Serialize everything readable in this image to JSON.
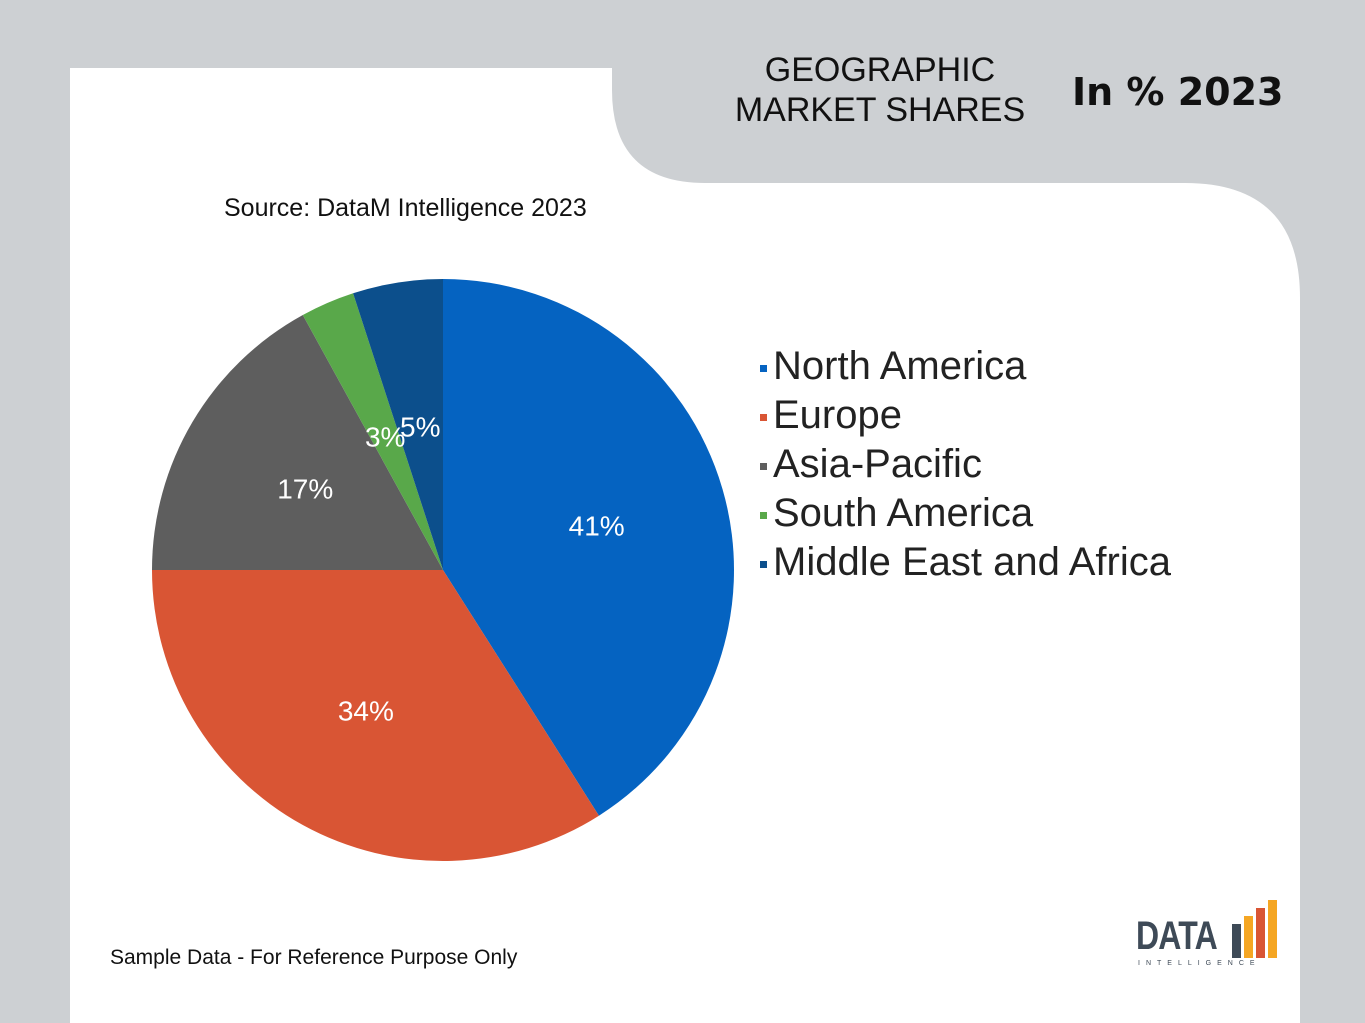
{
  "header": {
    "title": "GEOGRAPHIC MARKET SHARES",
    "subtitle": "In % 2023"
  },
  "source": "Source: DataM Intelligence 2023",
  "footnote": "Sample Data - For Reference Purpose Only",
  "logo": {
    "text": "DATA",
    "subtext": "INTELLIGENCE"
  },
  "colors": {
    "background": "#cdd0d3",
    "card": "#ffffff",
    "north_america": "#0563c1",
    "europe": "#d95534",
    "asia_pacific": "#5e5e5e",
    "south_america": "#59a84a",
    "middle_east_africa": "#0c4f8c"
  },
  "chart_data": {
    "type": "pie",
    "legend_position": "right",
    "slices": [
      {
        "name": "North America",
        "value": 41,
        "label": "41%",
        "color": "#0563c1"
      },
      {
        "name": "Europe",
        "value": 34,
        "label": "34%",
        "color": "#d95534"
      },
      {
        "name": "Asia-Pacific",
        "value": 17,
        "label": "17%",
        "color": "#5e5e5e"
      },
      {
        "name": "South America",
        "value": 3,
        "label": "3%",
        "color": "#59a84a"
      },
      {
        "name": "Middle East and Africa",
        "value": 5,
        "label": "5%",
        "color": "#0c4f8c"
      }
    ]
  }
}
